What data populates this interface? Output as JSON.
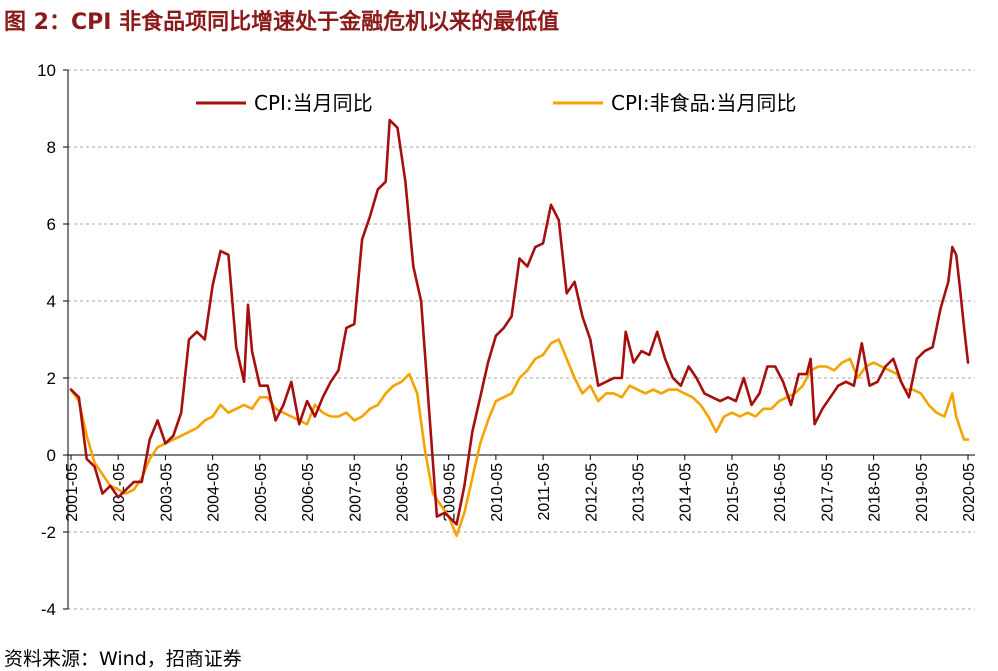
{
  "title": "图 2：CPI 非食品项同比增速处于金融危机以来的最低值",
  "source": "资料来源：Wind，招商证券",
  "colors": {
    "cpi": "#a50f0f",
    "nonfood": "#f5a300",
    "grid": "#a6a6a6",
    "title": "#8b1a1a"
  },
  "chart_data": {
    "type": "line",
    "y_ticks": [
      "10",
      "8",
      "6",
      "4",
      "2",
      "0",
      "-2",
      "-4"
    ],
    "ylim": [
      -4,
      10
    ],
    "grid": "dashed horizontal",
    "legend_position": "top",
    "x_ticks": [
      "2001-05",
      "2002-05",
      "2003-05",
      "2004-05",
      "2005-05",
      "2006-05",
      "2007-05",
      "2008-05",
      "2009-05",
      "2010-05",
      "2011-05",
      "2012-05",
      "2013-05",
      "2014-05",
      "2015-05",
      "2016-05",
      "2017-05",
      "2018-05",
      "2019-05",
      "2020-05"
    ],
    "series": [
      {
        "name": "CPI:当月同比",
        "color": "#a50f0f",
        "points": [
          [
            "2001-05",
            1.7
          ],
          [
            "2001-07",
            1.5
          ],
          [
            "2001-09",
            -0.1
          ],
          [
            "2001-11",
            -0.3
          ],
          [
            "2002-01",
            -1.0
          ],
          [
            "2002-03",
            -0.8
          ],
          [
            "2002-05",
            -1.1
          ],
          [
            "2002-07",
            -0.9
          ],
          [
            "2002-09",
            -0.7
          ],
          [
            "2002-11",
            -0.7
          ],
          [
            "2003-01",
            0.4
          ],
          [
            "2003-03",
            0.9
          ],
          [
            "2003-05",
            0.3
          ],
          [
            "2003-07",
            0.5
          ],
          [
            "2003-09",
            1.1
          ],
          [
            "2003-11",
            3.0
          ],
          [
            "2004-01",
            3.2
          ],
          [
            "2004-03",
            3.0
          ],
          [
            "2004-05",
            4.4
          ],
          [
            "2004-07",
            5.3
          ],
          [
            "2004-09",
            5.2
          ],
          [
            "2004-11",
            2.8
          ],
          [
            "2005-01",
            1.9
          ],
          [
            "2005-02",
            3.9
          ],
          [
            "2005-03",
            2.7
          ],
          [
            "2005-05",
            1.8
          ],
          [
            "2005-07",
            1.8
          ],
          [
            "2005-09",
            0.9
          ],
          [
            "2005-11",
            1.3
          ],
          [
            "2006-01",
            1.9
          ],
          [
            "2006-03",
            0.8
          ],
          [
            "2006-05",
            1.4
          ],
          [
            "2006-07",
            1.0
          ],
          [
            "2006-09",
            1.5
          ],
          [
            "2006-11",
            1.9
          ],
          [
            "2007-01",
            2.2
          ],
          [
            "2007-03",
            3.3
          ],
          [
            "2007-05",
            3.4
          ],
          [
            "2007-07",
            5.6
          ],
          [
            "2007-09",
            6.2
          ],
          [
            "2007-11",
            6.9
          ],
          [
            "2008-01",
            7.1
          ],
          [
            "2008-02",
            8.7
          ],
          [
            "2008-04",
            8.5
          ],
          [
            "2008-06",
            7.1
          ],
          [
            "2008-08",
            4.9
          ],
          [
            "2008-10",
            4.0
          ],
          [
            "2008-12",
            1.2
          ],
          [
            "2009-02",
            -1.6
          ],
          [
            "2009-04",
            -1.5
          ],
          [
            "2009-06",
            -1.7
          ],
          [
            "2009-07",
            -1.8
          ],
          [
            "2009-09",
            -0.8
          ],
          [
            "2009-11",
            0.6
          ],
          [
            "2010-01",
            1.5
          ],
          [
            "2010-03",
            2.4
          ],
          [
            "2010-05",
            3.1
          ],
          [
            "2010-07",
            3.3
          ],
          [
            "2010-09",
            3.6
          ],
          [
            "2010-11",
            5.1
          ],
          [
            "2011-01",
            4.9
          ],
          [
            "2011-03",
            5.4
          ],
          [
            "2011-05",
            5.5
          ],
          [
            "2011-07",
            6.5
          ],
          [
            "2011-09",
            6.1
          ],
          [
            "2011-11",
            4.2
          ],
          [
            "2012-01",
            4.5
          ],
          [
            "2012-03",
            3.6
          ],
          [
            "2012-05",
            3.0
          ],
          [
            "2012-07",
            1.8
          ],
          [
            "2012-09",
            1.9
          ],
          [
            "2012-11",
            2.0
          ],
          [
            "2013-01",
            2.0
          ],
          [
            "2013-02",
            3.2
          ],
          [
            "2013-04",
            2.4
          ],
          [
            "2013-06",
            2.7
          ],
          [
            "2013-08",
            2.6
          ],
          [
            "2013-10",
            3.2
          ],
          [
            "2013-12",
            2.5
          ],
          [
            "2014-02",
            2.0
          ],
          [
            "2014-04",
            1.8
          ],
          [
            "2014-06",
            2.3
          ],
          [
            "2014-08",
            2.0
          ],
          [
            "2014-10",
            1.6
          ],
          [
            "2014-12",
            1.5
          ],
          [
            "2015-02",
            1.4
          ],
          [
            "2015-04",
            1.5
          ],
          [
            "2015-06",
            1.4
          ],
          [
            "2015-08",
            2.0
          ],
          [
            "2015-10",
            1.3
          ],
          [
            "2015-12",
            1.6
          ],
          [
            "2016-02",
            2.3
          ],
          [
            "2016-04",
            2.3
          ],
          [
            "2016-06",
            1.9
          ],
          [
            "2016-08",
            1.3
          ],
          [
            "2016-10",
            2.1
          ],
          [
            "2016-12",
            2.1
          ],
          [
            "2017-01",
            2.5
          ],
          [
            "2017-02",
            0.8
          ],
          [
            "2017-04",
            1.2
          ],
          [
            "2017-06",
            1.5
          ],
          [
            "2017-08",
            1.8
          ],
          [
            "2017-10",
            1.9
          ],
          [
            "2017-12",
            1.8
          ],
          [
            "2018-02",
            2.9
          ],
          [
            "2018-04",
            1.8
          ],
          [
            "2018-06",
            1.9
          ],
          [
            "2018-08",
            2.3
          ],
          [
            "2018-10",
            2.5
          ],
          [
            "2018-12",
            1.9
          ],
          [
            "2019-02",
            1.5
          ],
          [
            "2019-04",
            2.5
          ],
          [
            "2019-06",
            2.7
          ],
          [
            "2019-08",
            2.8
          ],
          [
            "2019-10",
            3.8
          ],
          [
            "2019-12",
            4.5
          ],
          [
            "2020-01",
            5.4
          ],
          [
            "2020-02",
            5.2
          ],
          [
            "2020-03",
            4.3
          ],
          [
            "2020-04",
            3.3
          ],
          [
            "2020-05",
            2.4
          ]
        ]
      },
      {
        "name": "CPI:非食品:当月同比",
        "color": "#f5a300",
        "points": [
          [
            "2001-05",
            1.7
          ],
          [
            "2001-07",
            1.4
          ],
          [
            "2001-09",
            0.5
          ],
          [
            "2001-11",
            -0.2
          ],
          [
            "2002-01",
            -0.5
          ],
          [
            "2002-03",
            -0.8
          ],
          [
            "2002-05",
            -0.9
          ],
          [
            "2002-07",
            -1.0
          ],
          [
            "2002-09",
            -0.9
          ],
          [
            "2002-11",
            -0.6
          ],
          [
            "2003-01",
            -0.1
          ],
          [
            "2003-03",
            0.2
          ],
          [
            "2003-05",
            0.3
          ],
          [
            "2003-07",
            0.4
          ],
          [
            "2003-09",
            0.5
          ],
          [
            "2003-11",
            0.6
          ],
          [
            "2004-01",
            0.7
          ],
          [
            "2004-03",
            0.9
          ],
          [
            "2004-05",
            1.0
          ],
          [
            "2004-07",
            1.3
          ],
          [
            "2004-09",
            1.1
          ],
          [
            "2004-11",
            1.2
          ],
          [
            "2005-01",
            1.3
          ],
          [
            "2005-03",
            1.2
          ],
          [
            "2005-05",
            1.5
          ],
          [
            "2005-07",
            1.5
          ],
          [
            "2005-09",
            1.2
          ],
          [
            "2005-11",
            1.1
          ],
          [
            "2006-01",
            1.0
          ],
          [
            "2006-03",
            0.9
          ],
          [
            "2006-05",
            0.8
          ],
          [
            "2006-07",
            1.3
          ],
          [
            "2006-09",
            1.1
          ],
          [
            "2006-11",
            1.0
          ],
          [
            "2007-01",
            1.0
          ],
          [
            "2007-03",
            1.1
          ],
          [
            "2007-05",
            0.9
          ],
          [
            "2007-07",
            1.0
          ],
          [
            "2007-09",
            1.2
          ],
          [
            "2007-11",
            1.3
          ],
          [
            "2008-01",
            1.6
          ],
          [
            "2008-03",
            1.8
          ],
          [
            "2008-05",
            1.9
          ],
          [
            "2008-07",
            2.1
          ],
          [
            "2008-09",
            1.6
          ],
          [
            "2008-11",
            0.1
          ],
          [
            "2009-01",
            -1.0
          ],
          [
            "2009-03",
            -1.3
          ],
          [
            "2009-05",
            -1.6
          ],
          [
            "2009-07",
            -2.1
          ],
          [
            "2009-09",
            -1.5
          ],
          [
            "2009-11",
            -0.6
          ],
          [
            "2010-01",
            0.3
          ],
          [
            "2010-03",
            0.9
          ],
          [
            "2010-05",
            1.4
          ],
          [
            "2010-07",
            1.5
          ],
          [
            "2010-09",
            1.6
          ],
          [
            "2010-11",
            2.0
          ],
          [
            "2011-01",
            2.2
          ],
          [
            "2011-03",
            2.5
          ],
          [
            "2011-05",
            2.6
          ],
          [
            "2011-07",
            2.9
          ],
          [
            "2011-09",
            3.0
          ],
          [
            "2011-11",
            2.5
          ],
          [
            "2012-01",
            2.0
          ],
          [
            "2012-03",
            1.6
          ],
          [
            "2012-05",
            1.8
          ],
          [
            "2012-07",
            1.4
          ],
          [
            "2012-09",
            1.6
          ],
          [
            "2012-11",
            1.6
          ],
          [
            "2013-01",
            1.5
          ],
          [
            "2013-03",
            1.8
          ],
          [
            "2013-05",
            1.7
          ],
          [
            "2013-07",
            1.6
          ],
          [
            "2013-09",
            1.7
          ],
          [
            "2013-11",
            1.6
          ],
          [
            "2014-01",
            1.7
          ],
          [
            "2014-03",
            1.7
          ],
          [
            "2014-05",
            1.6
          ],
          [
            "2014-07",
            1.5
          ],
          [
            "2014-09",
            1.3
          ],
          [
            "2014-11",
            1.0
          ],
          [
            "2015-01",
            0.6
          ],
          [
            "2015-03",
            1.0
          ],
          [
            "2015-05",
            1.1
          ],
          [
            "2015-07",
            1.0
          ],
          [
            "2015-09",
            1.1
          ],
          [
            "2015-11",
            1.0
          ],
          [
            "2016-01",
            1.2
          ],
          [
            "2016-03",
            1.2
          ],
          [
            "2016-05",
            1.4
          ],
          [
            "2016-07",
            1.5
          ],
          [
            "2016-09",
            1.6
          ],
          [
            "2016-11",
            1.8
          ],
          [
            "2017-01",
            2.2
          ],
          [
            "2017-03",
            2.3
          ],
          [
            "2017-05",
            2.3
          ],
          [
            "2017-07",
            2.2
          ],
          [
            "2017-09",
            2.4
          ],
          [
            "2017-11",
            2.5
          ],
          [
            "2018-01",
            2.0
          ],
          [
            "2018-03",
            2.3
          ],
          [
            "2018-05",
            2.4
          ],
          [
            "2018-07",
            2.3
          ],
          [
            "2018-09",
            2.2
          ],
          [
            "2018-11",
            2.1
          ],
          [
            "2019-01",
            1.7
          ],
          [
            "2019-03",
            1.7
          ],
          [
            "2019-05",
            1.6
          ],
          [
            "2019-07",
            1.3
          ],
          [
            "2019-09",
            1.1
          ],
          [
            "2019-11",
            1.0
          ],
          [
            "2020-01",
            1.6
          ],
          [
            "2020-02",
            1.0
          ],
          [
            "2020-03",
            0.7
          ],
          [
            "2020-04",
            0.4
          ],
          [
            "2020-05",
            0.4
          ]
        ]
      }
    ]
  }
}
